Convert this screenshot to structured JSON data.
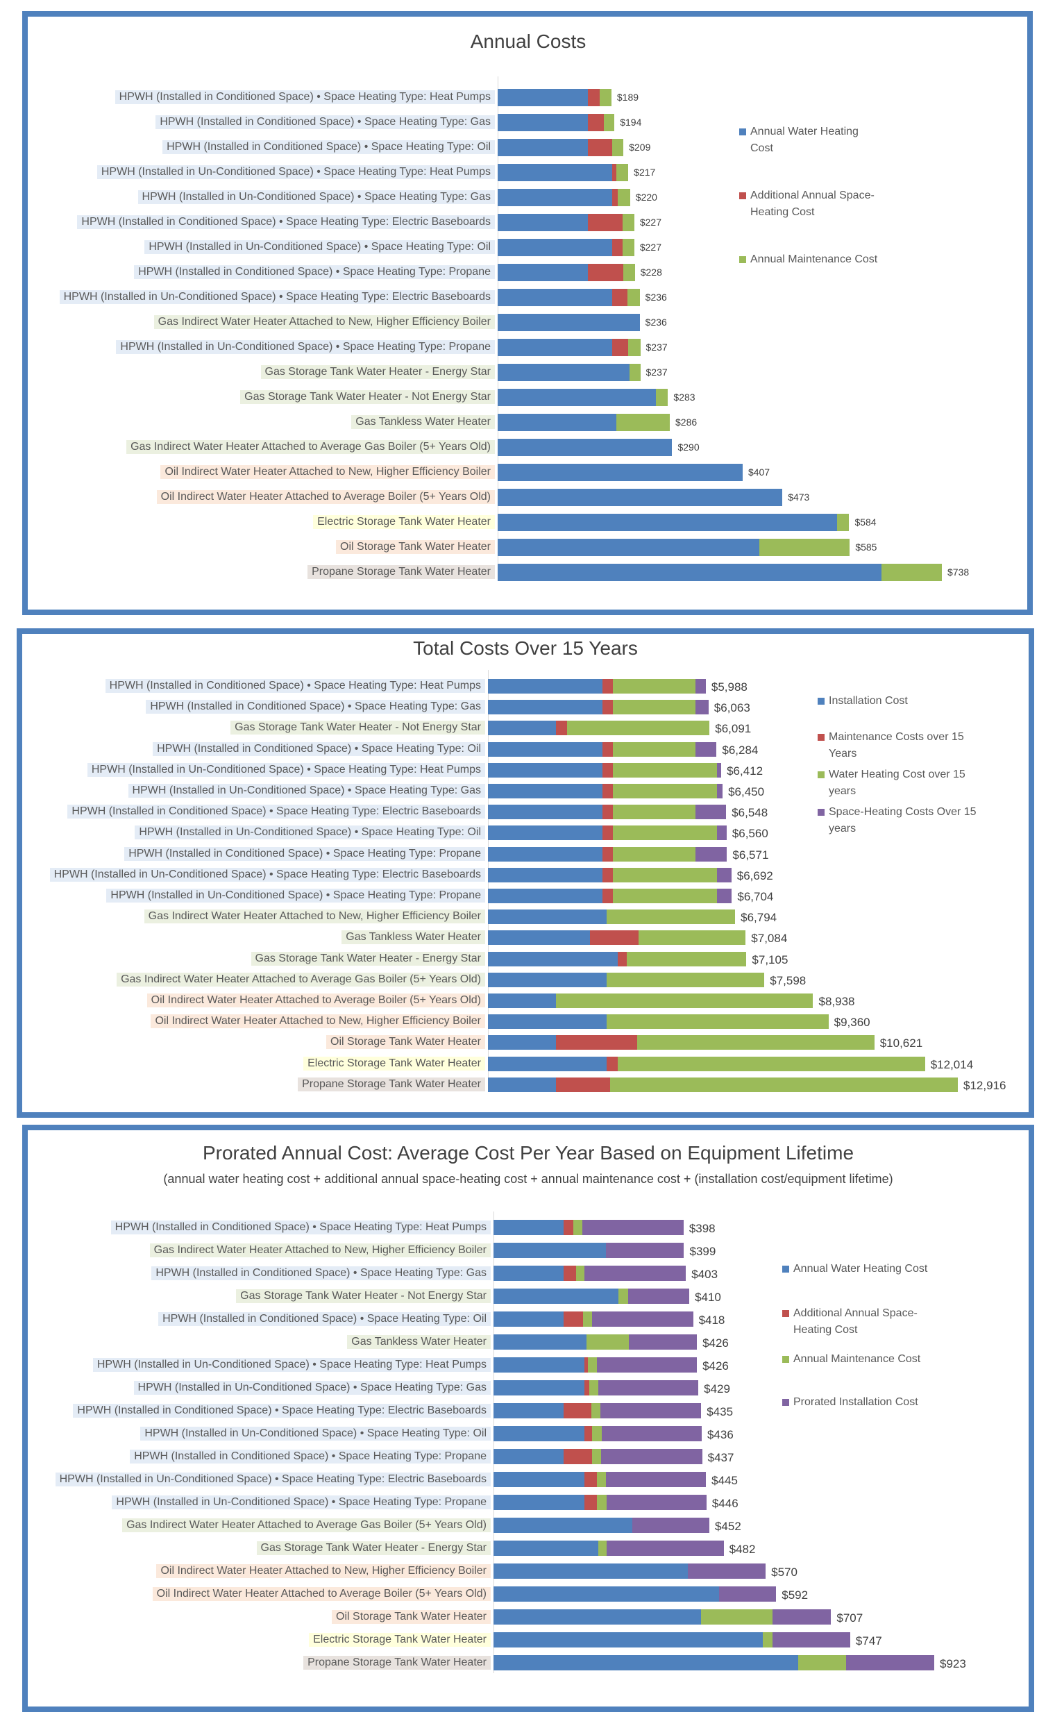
{
  "label_colors": {
    "hpwh": "#e4ecf6",
    "gas": "#ebf0e0",
    "oil": "#fbe9dc",
    "electric": "#ffffdc",
    "propane": "#e8e2de"
  },
  "chart_data": [
    {
      "type": "bar",
      "orientation": "horizontal",
      "stacked": true,
      "title": "Annual Costs",
      "xlim": [
        0,
        738
      ],
      "series": [
        {
          "name": "Annual Water Heating Cost",
          "color": "#4f81bd"
        },
        {
          "name": "Additional Annual Space-Heating Cost",
          "color": "#c0504d"
        },
        {
          "name": "Annual Maintenance Cost",
          "color": "#9bbb59"
        }
      ],
      "rows": [
        {
          "label": "HPWH (Installed in Conditioned Space) • Space Heating Type: Heat Pumps",
          "group": "hpwh",
          "values": [
            150,
            20,
            19
          ],
          "total": "$189"
        },
        {
          "label": "HPWH (Installed in Conditioned Space) • Space Heating Type: Gas",
          "group": "hpwh",
          "values": [
            150,
            26,
            18
          ],
          "total": "$194"
        },
        {
          "label": "HPWH (Installed in Conditioned Space) • Space Heating Type: Oil",
          "group": "hpwh",
          "values": [
            150,
            40,
            19
          ],
          "total": "$209"
        },
        {
          "label": "HPWH (Installed in Un-Conditioned Space) • Space Heating Type: Heat Pumps",
          "group": "hpwh",
          "values": [
            190,
            7,
            20
          ],
          "total": "$217"
        },
        {
          "label": "HPWH (Installed in Un-Conditioned Space) • Space Heating Type: Gas",
          "group": "hpwh",
          "values": [
            190,
            10,
            20
          ],
          "total": "$220"
        },
        {
          "label": "HPWH (Installed in Conditioned Space) • Space Heating Type: Electric Baseboards",
          "group": "hpwh",
          "values": [
            150,
            58,
            19
          ],
          "total": "$227"
        },
        {
          "label": "HPWH (Installed in Un-Conditioned Space) • Space Heating Type: Oil",
          "group": "hpwh",
          "values": [
            190,
            17,
            20
          ],
          "total": "$227"
        },
        {
          "label": "HPWH (Installed in Conditioned Space) • Space Heating Type: Propane",
          "group": "hpwh",
          "values": [
            150,
            59,
            19
          ],
          "total": "$228"
        },
        {
          "label": "HPWH (Installed in Un-Conditioned Space) • Space Heating Type: Electric Baseboards",
          "group": "hpwh",
          "values": [
            190,
            26,
            20
          ],
          "total": "$236"
        },
        {
          "label": "Gas Indirect Water Heater Attached to New, Higher Efficiency Boiler",
          "group": "gas",
          "values": [
            236,
            0,
            0
          ],
          "total": "$236"
        },
        {
          "label": "HPWH (Installed in Un-Conditioned Space) • Space Heating Type: Propane",
          "group": "hpwh",
          "values": [
            190,
            27,
            20
          ],
          "total": "$237"
        },
        {
          "label": "Gas Storage Tank Water Heater - Energy Star",
          "group": "gas",
          "values": [
            219,
            0,
            18
          ],
          "total": "$237"
        },
        {
          "label": "Gas Storage Tank Water Heater - Not Energy Star",
          "group": "gas",
          "values": [
            263,
            0,
            20
          ],
          "total": "$283"
        },
        {
          "label": "Gas Tankless Water Heater",
          "group": "gas",
          "values": [
            197,
            0,
            89
          ],
          "total": "$286"
        },
        {
          "label": "Gas Indirect Water Heater Attached to Average Gas Boiler (5+ Years Old)",
          "group": "gas",
          "values": [
            290,
            0,
            0
          ],
          "total": "$290"
        },
        {
          "label": "Oil Indirect Water Heater Attached to New, Higher Efficiency Boiler",
          "group": "oil",
          "values": [
            407,
            0,
            0
          ],
          "total": "$407"
        },
        {
          "label": "Oil Indirect Water Heater Attached to Average Boiler (5+ Years Old)",
          "group": "oil",
          "values": [
            473,
            0,
            0
          ],
          "total": "$473"
        },
        {
          "label": "Electric Storage Tank Water Heater",
          "group": "electric",
          "values": [
            564,
            0,
            20
          ],
          "total": "$584"
        },
        {
          "label": "Oil Storage Tank Water Heater",
          "group": "oil",
          "values": [
            435,
            0,
            150
          ],
          "total": "$585"
        },
        {
          "label": "Propane Storage Tank Water Heater",
          "group": "propane",
          "values": [
            638,
            0,
            100
          ],
          "total": "$738"
        }
      ]
    },
    {
      "type": "bar",
      "orientation": "horizontal",
      "stacked": true,
      "title": "Total Costs Over 15 Years",
      "xlim": [
        0,
        12916
      ],
      "series": [
        {
          "name": "Installation Cost",
          "color": "#4f81bd"
        },
        {
          "name": "Maintenance Costs over 15 Years",
          "color": "#c0504d"
        },
        {
          "name": "Water Heating Cost over 15 years",
          "color": "#9bbb59"
        },
        {
          "name": "Space-Heating Costs Over 15 years",
          "color": "#8064a2"
        }
      ],
      "rows": [
        {
          "label": "HPWH (Installed in Conditioned Space) • Space Heating Type: Heat Pumps",
          "group": "hpwh",
          "values": [
            3140,
            300,
            2265,
            283
          ],
          "total": "$5,988"
        },
        {
          "label": "HPWH (Installed in Conditioned Space) • Space Heating Type: Gas",
          "group": "hpwh",
          "values": [
            3140,
            300,
            2265,
            358
          ],
          "total": "$6,063"
        },
        {
          "label": "Gas Storage Tank Water Heater - Not Energy Star",
          "group": "gas",
          "values": [
            1870,
            300,
            3921,
            0
          ],
          "total": "$6,091"
        },
        {
          "label": "HPWH (Installed in Conditioned Space) • Space Heating Type: Oil",
          "group": "hpwh",
          "values": [
            3140,
            300,
            2265,
            579
          ],
          "total": "$6,284"
        },
        {
          "label": "HPWH (Installed in Un-Conditioned Space) • Space Heating Type: Heat Pumps",
          "group": "hpwh",
          "values": [
            3140,
            300,
            2850,
            122
          ],
          "total": "$6,412"
        },
        {
          "label": "HPWH (Installed in Un-Conditioned Space) • Space Heating Type: Gas",
          "group": "hpwh",
          "values": [
            3140,
            300,
            2850,
            160
          ],
          "total": "$6,450"
        },
        {
          "label": "HPWH (Installed in Conditioned Space) • Space Heating Type: Electric Baseboards",
          "group": "hpwh",
          "values": [
            3140,
            300,
            2265,
            843
          ],
          "total": "$6,548"
        },
        {
          "label": "HPWH (Installed in Un-Conditioned Space) • Space Heating Type: Oil",
          "group": "hpwh",
          "values": [
            3140,
            300,
            2850,
            270
          ],
          "total": "$6,560"
        },
        {
          "label": "HPWH (Installed in Conditioned Space) • Space Heating Type: Propane",
          "group": "hpwh",
          "values": [
            3140,
            300,
            2265,
            866
          ],
          "total": "$6,571"
        },
        {
          "label": "HPWH (Installed in Un-Conditioned Space) • Space Heating Type: Electric Baseboards",
          "group": "hpwh",
          "values": [
            3140,
            300,
            2850,
            402
          ],
          "total": "$6,692"
        },
        {
          "label": "HPWH (Installed in Un-Conditioned Space) • Space Heating Type: Propane",
          "group": "hpwh",
          "values": [
            3140,
            300,
            2850,
            414
          ],
          "total": "$6,704"
        },
        {
          "label": "Gas Indirect Water Heater Attached to New, Higher Efficiency Boiler",
          "group": "gas",
          "values": [
            3260,
            0,
            3534,
            0
          ],
          "total": "$6,794"
        },
        {
          "label": "Gas Tankless Water Heater",
          "group": "gas",
          "values": [
            2800,
            1335,
            2949,
            0
          ],
          "total": "$7,084"
        },
        {
          "label": "Gas Storage Tank Water Heater - Energy Star",
          "group": "gas",
          "values": [
            3560,
            265,
            3280,
            0
          ],
          "total": "$7,105"
        },
        {
          "label": "Gas Indirect Water Heater Attached to Average Gas Boiler (5+ Years Old)",
          "group": "gas",
          "values": [
            3260,
            0,
            4338,
            0
          ],
          "total": "$7,598"
        },
        {
          "label": "Oil Indirect Water Heater Attached to Average Boiler (5+ Years Old)",
          "group": "oil",
          "values": [
            1870,
            0,
            7068,
            0
          ],
          "total": "$8,938"
        },
        {
          "label": "Oil Indirect Water Heater Attached to New, Higher Efficiency Boiler",
          "group": "oil",
          "values": [
            3260,
            0,
            6100,
            0
          ],
          "total": "$9,360"
        },
        {
          "label": "Oil Storage Tank Water Heater",
          "group": "oil",
          "values": [
            1870,
            2235,
            6516,
            0
          ],
          "total": "$10,621"
        },
        {
          "label": "Electric Storage Tank Water Heater",
          "group": "electric",
          "values": [
            3260,
            300,
            8454,
            0
          ],
          "total": "$12,014"
        },
        {
          "label": "Propane Storage Tank Water Heater",
          "group": "propane",
          "values": [
            1870,
            1480,
            9566,
            0
          ],
          "total": "$12,916"
        }
      ]
    },
    {
      "type": "bar",
      "orientation": "horizontal",
      "stacked": true,
      "title": "Prorated Annual Cost: Average Cost Per Year Based on Equipment Lifetime",
      "subtitle": "(annual water heating cost + additional annual space-heating cost + annual maintenance cost + (installation cost/equipment lifetime)",
      "xlim": [
        0,
        923
      ],
      "series": [
        {
          "name": "Annual Water Heating Cost",
          "color": "#4f81bd"
        },
        {
          "name": "Additional Annual Space-Heating Cost",
          "color": "#c0504d"
        },
        {
          "name": "Annual Maintenance Cost",
          "color": "#9bbb59"
        },
        {
          "name": "Prorated Installation Cost",
          "color": "#8064a2"
        }
      ],
      "rows": [
        {
          "label": "HPWH (Installed in Conditioned Space) • Space Heating Type: Heat Pumps",
          "group": "hpwh",
          "values": [
            147,
            20,
            19,
            212
          ],
          "total": "$398"
        },
        {
          "label": "Gas Indirect Water Heater Attached to New, Higher Efficiency Boiler",
          "group": "gas",
          "values": [
            235,
            0,
            0,
            164
          ],
          "total": "$399"
        },
        {
          "label": "HPWH (Installed in Conditioned Space) • Space Heating Type: Gas",
          "group": "hpwh",
          "values": [
            147,
            26,
            18,
            212
          ],
          "total": "$403"
        },
        {
          "label": "Gas Storage Tank Water Heater - Not Energy Star",
          "group": "gas",
          "values": [
            262,
            0,
            20,
            128
          ],
          "total": "$410"
        },
        {
          "label": "HPWH (Installed in Conditioned Space) • Space Heating Type: Oil",
          "group": "hpwh",
          "values": [
            147,
            40,
            19,
            212
          ],
          "total": "$418"
        },
        {
          "label": "Gas Tankless Water Heater",
          "group": "gas",
          "values": [
            195,
            0,
            89,
            142
          ],
          "total": "$426"
        },
        {
          "label": "HPWH (Installed in Un-Conditioned Space) • Space Heating Type: Heat Pumps",
          "group": "hpwh",
          "values": [
            190,
            7,
            20,
            209
          ],
          "total": "$426"
        },
        {
          "label": "HPWH (Installed in Un-Conditioned Space) • Space Heating Type: Gas",
          "group": "hpwh",
          "values": [
            190,
            10,
            20,
            209
          ],
          "total": "$429"
        },
        {
          "label": "HPWH (Installed in Conditioned Space) • Space Heating Type: Electric Baseboards",
          "group": "hpwh",
          "values": [
            147,
            58,
            19,
            211
          ],
          "total": "$435"
        },
        {
          "label": "HPWH (Installed in Un-Conditioned Space) • Space Heating Type: Oil",
          "group": "hpwh",
          "values": [
            190,
            17,
            20,
            209
          ],
          "total": "$436"
        },
        {
          "label": "HPWH (Installed in Conditioned Space) • Space Heating Type: Propane",
          "group": "hpwh",
          "values": [
            147,
            59,
            19,
            212
          ],
          "total": "$437"
        },
        {
          "label": "HPWH (Installed in Un-Conditioned Space) • Space Heating Type: Electric Baseboards",
          "group": "hpwh",
          "values": [
            190,
            26,
            20,
            209
          ],
          "total": "$445"
        },
        {
          "label": "HPWH (Installed in Un-Conditioned Space) • Space Heating Type: Propane",
          "group": "hpwh",
          "values": [
            190,
            27,
            20,
            209
          ],
          "total": "$446"
        },
        {
          "label": "Gas Indirect Water Heater Attached to Average Gas Boiler (5+ Years Old)",
          "group": "gas",
          "values": [
            290,
            0,
            0,
            162
          ],
          "total": "$452"
        },
        {
          "label": "Gas Storage Tank Water Heater - Energy Star",
          "group": "gas",
          "values": [
            219,
            0,
            18,
            245
          ],
          "total": "$482"
        },
        {
          "label": "Oil Indirect Water Heater Attached to New, Higher Efficiency Boiler",
          "group": "oil",
          "values": [
            407,
            0,
            0,
            163
          ],
          "total": "$570"
        },
        {
          "label": "Oil Indirect Water Heater Attached to Average Boiler (5+ Years Old)",
          "group": "oil",
          "values": [
            473,
            0,
            0,
            119
          ],
          "total": "$592"
        },
        {
          "label": "Oil Storage Tank Water Heater",
          "group": "oil",
          "values": [
            435,
            0,
            150,
            122
          ],
          "total": "$707"
        },
        {
          "label": "Electric Storage Tank Water Heater",
          "group": "electric",
          "values": [
            564,
            0,
            20,
            163
          ],
          "total": "$747"
        },
        {
          "label": "Propane Storage Tank Water Heater",
          "group": "propane",
          "values": [
            638,
            0,
            100,
            185
          ],
          "total": "$923"
        }
      ]
    }
  ]
}
